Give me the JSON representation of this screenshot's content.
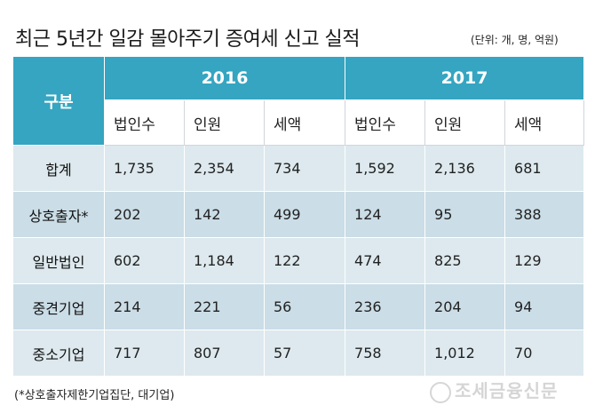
{
  "title": "최근 5년간 일감 몰아주기 증여세 신고 실적",
  "unit": "(단위: 개, 명, 억원)",
  "table": {
    "row_header": "구분",
    "years": [
      "2016",
      "2017"
    ],
    "sub_columns": [
      "법인수",
      "인원",
      "세액"
    ],
    "rows": [
      {
        "label": "합계",
        "values": [
          "1,735",
          "2,354",
          "734",
          "1,592",
          "2,136",
          "681"
        ]
      },
      {
        "label": "상호출자*",
        "values": [
          "202",
          "142",
          "499",
          "124",
          "95",
          "388"
        ]
      },
      {
        "label": "일반법인",
        "values": [
          "602",
          "1,184",
          "122",
          "474",
          "825",
          "129"
        ]
      },
      {
        "label": "중견기업",
        "values": [
          "214",
          "221",
          "56",
          "236",
          "204",
          "94"
        ]
      },
      {
        "label": "중소기업",
        "values": [
          "717",
          "807",
          "57",
          "758",
          "1,012",
          "70"
        ]
      }
    ]
  },
  "footnote": "(*상호출자제한기업집단, 대기업)",
  "watermark": "조세금융신문",
  "colors": {
    "header": "#35a5c1",
    "row_light": "#dde9ee",
    "row_dark": "#cbdde6"
  }
}
